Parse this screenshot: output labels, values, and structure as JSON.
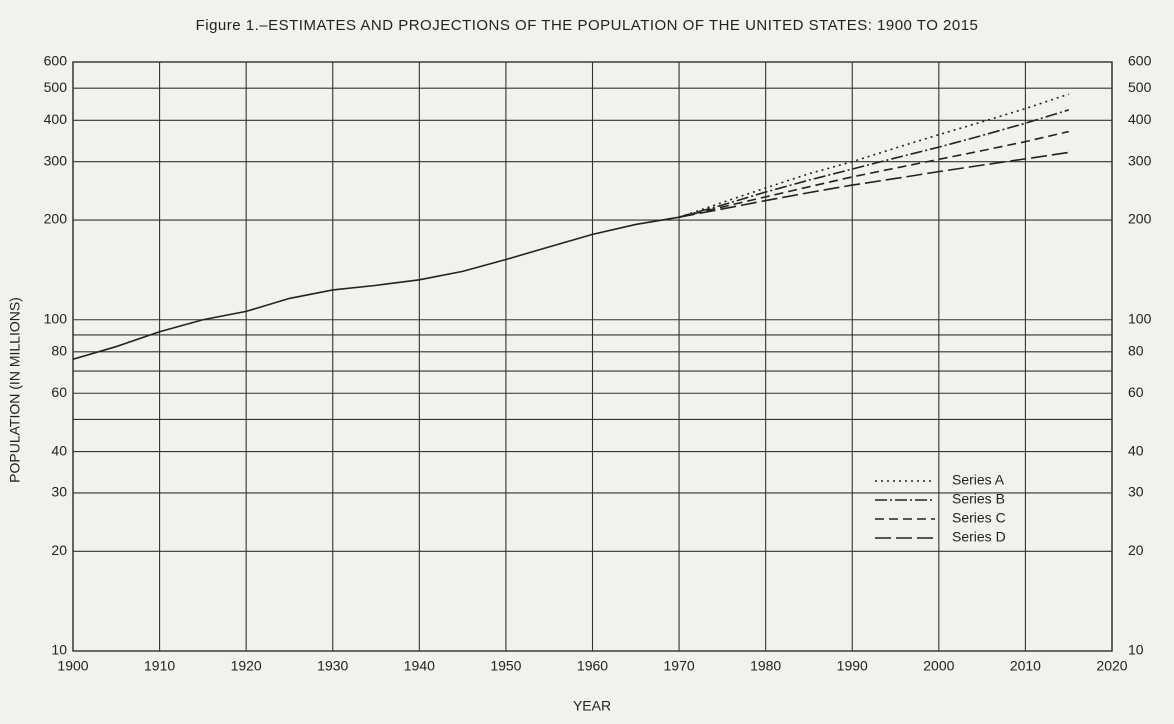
{
  "chart_data": {
    "type": "line",
    "title": "Figure 1.–ESTIMATES AND PROJECTIONS OF THE POPULATION OF THE UNITED STATES: 1900 TO 2015",
    "x_label": "YEAR",
    "y_label": "POPULATION (IN MILLIONS)",
    "log_y": true,
    "grid": true,
    "legend": "lower right",
    "x": [
      1900,
      1905,
      1910,
      1915,
      1920,
      1925,
      1930,
      1935,
      1940,
      1945,
      1950,
      1955,
      1960,
      1965,
      1970,
      1975,
      1980,
      1985,
      1990,
      1995,
      2000,
      2005,
      2010,
      2015
    ],
    "series": [
      {
        "color": "#222",
        "dash": "none",
        "values": [
          76,
          83,
          92,
          100,
          106,
          116,
          123,
          127,
          132,
          140,
          152,
          166,
          181,
          194,
          204,
          null,
          null,
          null,
          null,
          null,
          null,
          null,
          null,
          null
        ]
      },
      {
        "name": "Series A",
        "color": "#222",
        "dash": "2,4",
        "values": [
          null,
          null,
          null,
          null,
          null,
          null,
          null,
          null,
          null,
          null,
          null,
          null,
          null,
          null,
          204,
          226,
          250,
          276,
          300,
          330,
          362,
          396,
          434,
          480
        ]
      },
      {
        "name": "Series B",
        "color": "#222",
        "dash": "12,3,2,3",
        "values": [
          null,
          null,
          null,
          null,
          null,
          null,
          null,
          null,
          null,
          null,
          null,
          null,
          null,
          null,
          204,
          222,
          243,
          264,
          285,
          308,
          332,
          360,
          392,
          430
        ]
      },
      {
        "name": "Series C",
        "color": "#222",
        "dash": "9,5",
        "values": [
          null,
          null,
          null,
          null,
          null,
          null,
          null,
          null,
          null,
          null,
          null,
          null,
          null,
          null,
          204,
          219,
          235,
          252,
          270,
          287,
          305,
          324,
          345,
          370
        ]
      },
      {
        "name": "Series D",
        "color": "#222",
        "dash": "16,5",
        "values": [
          null,
          null,
          null,
          null,
          null,
          null,
          null,
          null,
          null,
          null,
          null,
          null,
          null,
          null,
          204,
          216,
          229,
          242,
          255,
          267,
          280,
          293,
          306,
          320
        ]
      }
    ],
    "xlim": [
      1900,
      2020
    ],
    "xticks": [
      1900,
      1910,
      1920,
      1930,
      1940,
      1950,
      1960,
      1970,
      1980,
      1990,
      2000,
      2010,
      2020
    ],
    "ylim": [
      10,
      600
    ],
    "yticks": [
      10,
      20,
      30,
      40,
      60,
      80,
      100,
      200,
      300,
      400,
      500,
      600
    ],
    "minor_yticks": [
      50,
      70,
      90
    ]
  }
}
